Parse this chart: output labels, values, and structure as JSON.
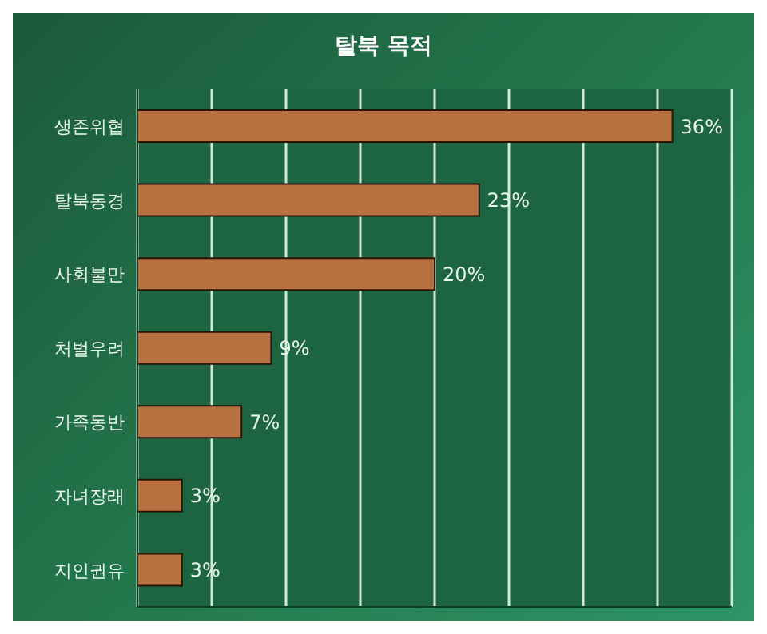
{
  "chart_data": {
    "type": "bar",
    "orientation": "horizontal",
    "title": "탈북 목적",
    "categories": [
      "생존위협",
      "탈북동경",
      "사회불만",
      "처벌우려",
      "가족동반",
      "자녀장래",
      "지인권유"
    ],
    "values": [
      36,
      23,
      20,
      9,
      7,
      3,
      3
    ],
    "value_labels": [
      "36%",
      "23%",
      "20%",
      "9%",
      "7%",
      "3%",
      "3%"
    ],
    "color": "#b87140",
    "xlim": [
      0,
      40
    ],
    "grid": "x",
    "tick_labels": "y"
  }
}
